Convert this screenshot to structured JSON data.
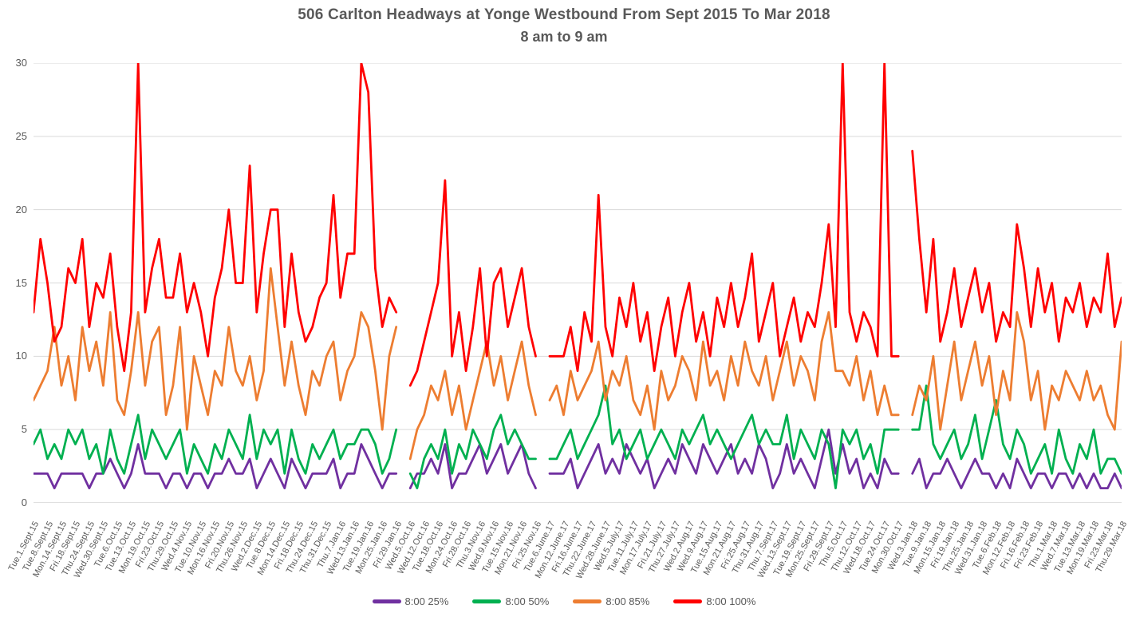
{
  "title": "506 Carlton Headways at Yonge Westbound From Sept 2015 To Mar 2018",
  "subtitle": "8 am to 9 am",
  "colors": {
    "text_gray": "#595959",
    "gridline": "#D9D9D9",
    "axis_line": "#C0C0C0",
    "series_25": "#7030A0",
    "series_50": "#00B050",
    "series_85": "#ED7D31",
    "series_100": "#FF0000"
  },
  "chart_data": {
    "type": "line",
    "title": "506 Carlton Headways at Yonge Westbound From Sept 2015 To Mar 2018",
    "subtitle": "8 am to 9 am",
    "ylabel": "",
    "xlabel": "",
    "ylim": [
      0,
      30
    ],
    "y_ticks": [
      0,
      5,
      10,
      15,
      20,
      25,
      30
    ],
    "grid": "horizontal",
    "legend_position": "bottom",
    "points_per_label_interval": 2,
    "gaps_after_labels": [
      "Fri.29.Jan.16",
      "Fri.25.Nov.16",
      "Mon.30.Oct.17"
    ],
    "x_labels": [
      "Tue.1.Sept.15",
      "Tue.8.Sept.15",
      "Mon.14.Sept.15",
      "Fri.18.Sept.15",
      "Thu.24.Sept.15",
      "Wed.30.Sept.15",
      "Tue.6.Oct.15",
      "Tue.13.Oct.15",
      "Mon.19.Oct.15",
      "Fri.23.Oct.15",
      "Thu.29.Oct.15",
      "Wed.4.Nov.15",
      "Tue.10.Nov.15",
      "Mon.16.Nov.15",
      "Fri.20.Nov.15",
      "Thu.26.Nov.15",
      "Wed.2.Dec.15",
      "Tue.8.Dec.15",
      "Mon.14.Dec.15",
      "Fri.18.Dec.15",
      "Thu.24.Dec.15",
      "Thu.31.Dec.15",
      "Thu.7.Jan.16",
      "Wed.13.Jan.16",
      "Tue.19.Jan.16",
      "Mon.25.Jan.16",
      "Fri.29.Jan.16",
      "Wed.5.Oct.16",
      "Wed.12.Oct.16",
      "Tue.18.Oct.16",
      "Mon.24.Oct.16",
      "Fri.28.Oct.16",
      "Thu.3.Nov.16",
      "Wed.9.Nov.16",
      "Tue.15.Nov.16",
      "Mon.21.Nov.16",
      "Fri.25.Nov.16",
      "Tue.6.June.17",
      "Mon.12.June.17",
      "Fri.16.June.17",
      "Thu.22.June.17",
      "Wed.28.June.17",
      "Wed.5.July.17",
      "Tue.11.July.17",
      "Mon.17.July.17",
      "Fri.21.July.17",
      "Thu.27.July.17",
      "Wed.2.Aug.17",
      "Wed.9.Aug.17",
      "Tue.15.Aug.17",
      "Mon.21.Aug.17",
      "Fri.25.Aug.17",
      "Thu.31.Aug.17",
      "Thu.7.Sept.17",
      "Wed.13.Sept.17",
      "Tue.19.Sept.17",
      "Mon.25.Sept.17",
      "Fri.29.Sept.17",
      "Thu.5.Oct.17",
      "Thu.12.Oct.17",
      "Wed.18.Oct.17",
      "Tue.24.Oct.17",
      "Mon.30.Oct.17",
      "Wed.3.Jan.18",
      "Tue.9.Jan.18",
      "Mon.15.Jan.18",
      "Fri.19.Jan.18",
      "Thu.25.Jan.18",
      "Wed.31.Jan.18",
      "Tue.6.Feb.18",
      "Mon.12.Feb.18",
      "Fri.16.Feb.18",
      "Fri.23.Feb.18",
      "Thu.1.Mar.18",
      "Wed.7.Mar.18",
      "Tue.13.Mar.18",
      "Mon.19.Mar.18",
      "Fri.23.Mar.18",
      "Thu.29.Mar.18"
    ],
    "series": [
      {
        "name": "8:00 25%",
        "color": "#7030A0",
        "values": [
          2,
          2,
          2,
          1,
          2,
          2,
          2,
          2,
          1,
          2,
          2,
          3,
          2,
          1,
          2,
          4,
          2,
          2,
          2,
          1,
          2,
          2,
          1,
          2,
          2,
          1,
          2,
          2,
          3,
          2,
          2,
          3,
          1,
          2,
          3,
          2,
          1,
          3,
          2,
          1,
          2,
          2,
          2,
          3,
          1,
          2,
          2,
          4,
          3,
          2,
          1,
          2,
          2,
          null,
          1,
          2,
          2,
          3,
          2,
          4,
          1,
          2,
          2,
          3,
          4,
          2,
          3,
          4,
          2,
          3,
          4,
          2,
          1,
          null,
          2,
          2,
          2,
          3,
          1,
          2,
          3,
          4,
          2,
          3,
          2,
          4,
          3,
          2,
          3,
          1,
          2,
          3,
          2,
          4,
          3,
          2,
          4,
          3,
          2,
          3,
          4,
          2,
          3,
          2,
          4,
          3,
          1,
          2,
          4,
          2,
          3,
          2,
          1,
          3,
          5,
          2,
          4,
          2,
          3,
          1,
          2,
          1,
          3,
          2,
          2,
          null,
          2,
          3,
          1,
          2,
          2,
          3,
          2,
          1,
          2,
          3,
          2,
          2,
          1,
          2,
          1,
          3,
          2,
          1,
          2,
          2,
          1,
          2,
          2,
          1,
          2,
          1,
          2,
          1,
          1,
          2,
          1
        ]
      },
      {
        "name": "8:00 50%",
        "color": "#00B050",
        "values": [
          4,
          5,
          3,
          4,
          3,
          5,
          4,
          5,
          3,
          4,
          2,
          5,
          3,
          2,
          4,
          6,
          3,
          5,
          4,
          3,
          4,
          5,
          2,
          4,
          3,
          2,
          4,
          3,
          5,
          4,
          3,
          6,
          3,
          5,
          4,
          5,
          2,
          5,
          3,
          2,
          4,
          3,
          4,
          5,
          3,
          4,
          4,
          5,
          5,
          4,
          2,
          3,
          5,
          null,
          2,
          1,
          3,
          4,
          3,
          5,
          2,
          4,
          3,
          5,
          4,
          3,
          5,
          6,
          4,
          5,
          4,
          3,
          3,
          null,
          3,
          3,
          4,
          5,
          3,
          4,
          5,
          6,
          8,
          4,
          5,
          3,
          4,
          5,
          3,
          4,
          5,
          4,
          3,
          5,
          4,
          5,
          6,
          4,
          5,
          4,
          3,
          4,
          5,
          6,
          4,
          5,
          4,
          4,
          6,
          3,
          5,
          4,
          3,
          5,
          4,
          1,
          5,
          4,
          5,
          3,
          4,
          2,
          5,
          5,
          5,
          null,
          5,
          5,
          8,
          4,
          3,
          4,
          5,
          3,
          4,
          6,
          3,
          5,
          7,
          4,
          3,
          5,
          4,
          2,
          3,
          4,
          2,
          5,
          3,
          2,
          4,
          3,
          5,
          2,
          3,
          3,
          2
        ]
      },
      {
        "name": "8:00 85%",
        "color": "#ED7D31",
        "values": [
          7,
          8,
          9,
          12,
          8,
          10,
          7,
          12,
          9,
          11,
          8,
          13,
          7,
          6,
          9,
          13,
          8,
          11,
          12,
          6,
          8,
          12,
          5,
          10,
          8,
          6,
          9,
          8,
          12,
          9,
          8,
          10,
          7,
          9,
          16,
          12,
          8,
          11,
          8,
          6,
          9,
          8,
          10,
          11,
          7,
          9,
          10,
          13,
          12,
          9,
          5,
          10,
          12,
          null,
          3,
          5,
          6,
          8,
          7,
          9,
          6,
          8,
          5,
          7,
          9,
          11,
          8,
          10,
          7,
          9,
          11,
          8,
          6,
          null,
          7,
          8,
          6,
          9,
          7,
          8,
          9,
          11,
          7,
          9,
          8,
          10,
          7,
          6,
          8,
          5,
          9,
          7,
          8,
          10,
          9,
          7,
          11,
          8,
          9,
          7,
          10,
          8,
          11,
          9,
          8,
          10,
          7,
          9,
          11,
          8,
          10,
          9,
          7,
          11,
          13,
          9,
          9,
          8,
          10,
          7,
          9,
          6,
          8,
          6,
          6,
          null,
          6,
          8,
          7,
          10,
          5,
          8,
          11,
          7,
          9,
          11,
          8,
          10,
          6,
          9,
          7,
          13,
          11,
          7,
          9,
          5,
          8,
          7,
          9,
          8,
          7,
          9,
          7,
          8,
          6,
          5,
          11
        ]
      },
      {
        "name": "8:00 100%",
        "color": "#FF0000",
        "values": [
          13,
          18,
          15,
          11,
          12,
          16,
          15,
          18,
          12,
          15,
          14,
          17,
          12,
          9,
          13,
          30,
          13,
          16,
          18,
          14,
          14,
          17,
          13,
          15,
          13,
          10,
          14,
          16,
          20,
          15,
          15,
          23,
          13,
          17,
          20,
          20,
          12,
          17,
          13,
          11,
          12,
          14,
          15,
          21,
          14,
          17,
          17,
          30,
          28,
          16,
          12,
          14,
          13,
          null,
          8,
          9,
          11,
          13,
          15,
          22,
          10,
          13,
          9,
          12,
          16,
          10,
          15,
          16,
          12,
          14,
          16,
          12,
          10,
          null,
          10,
          10,
          10,
          12,
          9,
          13,
          11,
          21,
          12,
          10,
          14,
          12,
          15,
          11,
          13,
          9,
          12,
          14,
          10,
          13,
          15,
          11,
          13,
          10,
          14,
          12,
          15,
          12,
          14,
          17,
          11,
          13,
          15,
          10,
          12,
          14,
          11,
          13,
          12,
          15,
          19,
          12,
          30,
          13,
          11,
          13,
          12,
          10,
          30,
          10,
          10,
          null,
          24,
          18,
          13,
          18,
          11,
          13,
          16,
          12,
          14,
          16,
          13,
          15,
          11,
          13,
          12,
          19,
          16,
          12,
          16,
          13,
          15,
          11,
          14,
          13,
          15,
          12,
          14,
          13,
          17,
          12,
          14
        ]
      }
    ]
  }
}
